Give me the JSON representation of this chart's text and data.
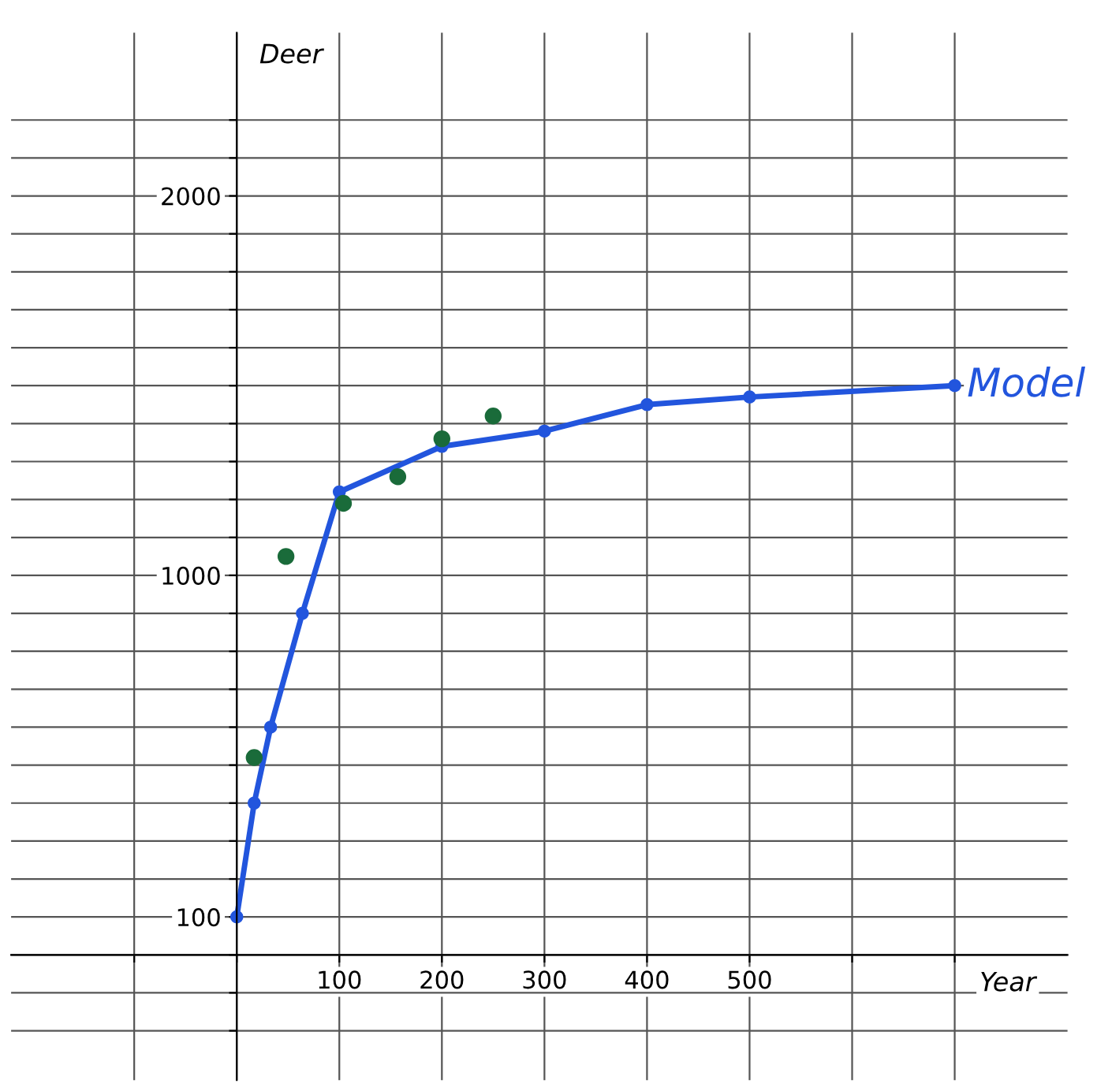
{
  "chart_data": {
    "type": "line",
    "xlabel": "Year",
    "ylabel": "Deer",
    "xlim": [
      -220,
      810
    ],
    "ylim": [
      -330,
      2430
    ],
    "xticks": [
      {
        "value": -100,
        "label": null
      },
      {
        "value": 0,
        "label": null
      },
      100,
      200,
      300,
      400,
      500,
      {
        "value": 600,
        "label": null
      },
      {
        "value": 700,
        "label": null
      }
    ],
    "yticks": [
      {
        "value": -200,
        "label": null
      },
      {
        "value": -100,
        "label": null
      },
      {
        "value": 0,
        "label": null
      },
      100,
      {
        "value": 200,
        "label": null
      },
      {
        "value": 300,
        "label": null
      },
      {
        "value": 400,
        "label": null
      },
      {
        "value": 500,
        "label": null
      },
      {
        "value": 600,
        "label": null
      },
      {
        "value": 700,
        "label": null
      },
      {
        "value": 800,
        "label": null
      },
      {
        "value": 900,
        "label": null
      },
      1000,
      {
        "value": 1100,
        "label": null
      },
      {
        "value": 1200,
        "label": null
      },
      {
        "value": 1300,
        "label": null
      },
      {
        "value": 1400,
        "label": null
      },
      {
        "value": 1500,
        "label": null
      },
      {
        "value": 1600,
        "label": null
      },
      {
        "value": 1700,
        "label": null
      },
      {
        "value": 1800,
        "label": null
      },
      {
        "value": 1900,
        "label": null
      },
      2000,
      {
        "value": 2100,
        "label": null
      },
      {
        "value": 2200,
        "label": null
      }
    ],
    "grid": true,
    "legend": false,
    "series": [
      {
        "name": "Model",
        "color": "#2255dd",
        "marker": "circle",
        "x": [
          0,
          17,
          33,
          64,
          100,
          200,
          300,
          400,
          500,
          700
        ],
        "values": [
          100,
          400,
          600,
          900,
          1220,
          1340,
          1380,
          1450,
          1470,
          1500
        ]
      },
      {
        "type": "scatter",
        "color": "#1a6b3a",
        "marker": "circle",
        "x": [
          17,
          48,
          104,
          157,
          200,
          250
        ],
        "values": [
          520,
          1050,
          1190,
          1260,
          1360,
          1420
        ]
      }
    ]
  }
}
